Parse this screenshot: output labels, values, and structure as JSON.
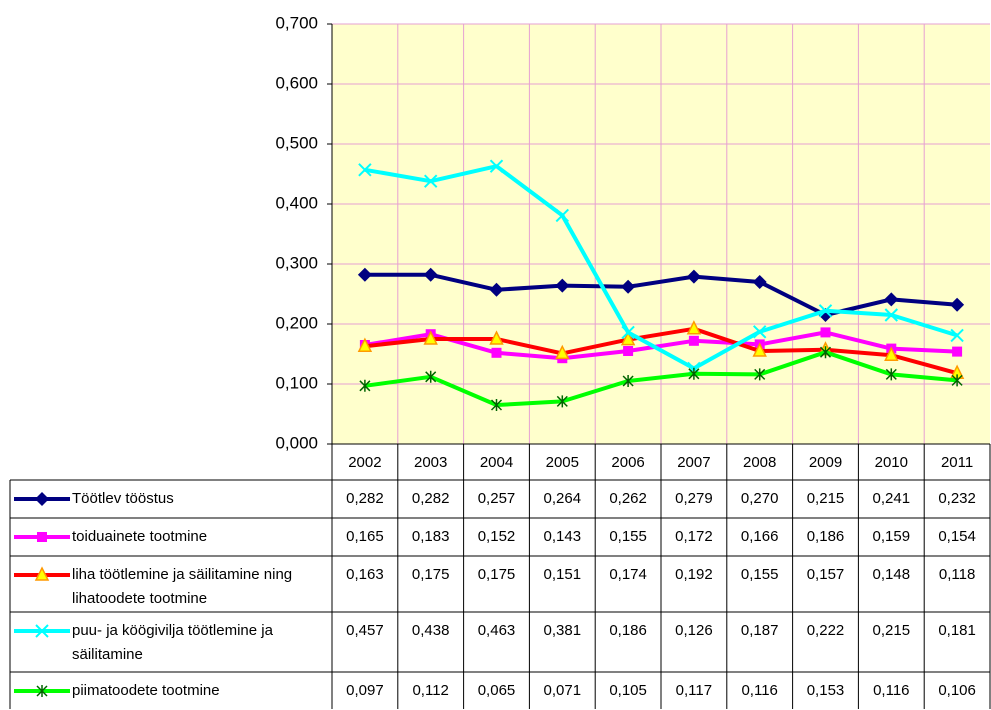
{
  "chart_data": {
    "type": "line",
    "categories": [
      "2002",
      "2003",
      "2004",
      "2005",
      "2006",
      "2007",
      "2008",
      "2009",
      "2010",
      "2011"
    ],
    "ylim": [
      0,
      0.7
    ],
    "yticks": [
      {
        "value": 0,
        "label": "0,000"
      },
      {
        "value": 0.1,
        "label": "0,100"
      },
      {
        "value": 0.2,
        "label": "0,200"
      },
      {
        "value": 0.3,
        "label": "0,300"
      },
      {
        "value": 0.4,
        "label": "0,400"
      },
      {
        "value": 0.5,
        "label": "0,500"
      },
      {
        "value": 0.6,
        "label": "0,600"
      },
      {
        "value": 0.7,
        "label": "0,700"
      }
    ],
    "grid": true,
    "series": [
      {
        "name": "Töötlev  tööstus",
        "color": "#000080",
        "marker": "diamond",
        "values": [
          0.282,
          0.282,
          0.257,
          0.264,
          0.262,
          0.279,
          0.27,
          0.215,
          0.241,
          0.232
        ],
        "value_labels": [
          "0,282",
          "0,282",
          "0,257",
          "0,264",
          "0,262",
          "0,279",
          "0,270",
          "0,215",
          "0,241",
          "0,232"
        ]
      },
      {
        "name": "toiduainete tootmine",
        "color": "#ff00ff",
        "marker": "square",
        "values": [
          0.165,
          0.183,
          0.152,
          0.143,
          0.155,
          0.172,
          0.166,
          0.186,
          0.159,
          0.154
        ],
        "value_labels": [
          "0,165",
          "0,183",
          "0,152",
          "0,143",
          "0,155",
          "0,172",
          "0,166",
          "0,186",
          "0,159",
          "0,154"
        ]
      },
      {
        "name": "liha töötlemine ja säilitamine ning lihatoodete tootmine",
        "color": "#ff0000",
        "marker": "triangle",
        "values": [
          0.163,
          0.175,
          0.175,
          0.151,
          0.174,
          0.192,
          0.155,
          0.157,
          0.148,
          0.118
        ],
        "value_labels": [
          "0,163",
          "0,175",
          "0,175",
          "0,151",
          "0,174",
          "0,192",
          "0,155",
          "0,157",
          "0,148",
          "0,118"
        ]
      },
      {
        "name": "puu- ja köögivilja töötlemine ja säilitamine",
        "color": "#00ffff",
        "marker": "x",
        "values": [
          0.457,
          0.438,
          0.463,
          0.381,
          0.186,
          0.126,
          0.187,
          0.222,
          0.215,
          0.181
        ],
        "value_labels": [
          "0,457",
          "0,438",
          "0,463",
          "0,381",
          "0,186",
          "0,126",
          "0,187",
          "0,222",
          "0,215",
          "0,181"
        ]
      },
      {
        "name": "piimatoodete tootmine",
        "color": "#00ff00",
        "marker": "star",
        "values": [
          0.097,
          0.112,
          0.065,
          0.071,
          0.105,
          0.117,
          0.116,
          0.153,
          0.116,
          0.106
        ],
        "value_labels": [
          "0,097",
          "0,112",
          "0,065",
          "0,071",
          "0,105",
          "0,117",
          "0,116",
          "0,153",
          "0,116",
          "0,106"
        ]
      }
    ]
  }
}
